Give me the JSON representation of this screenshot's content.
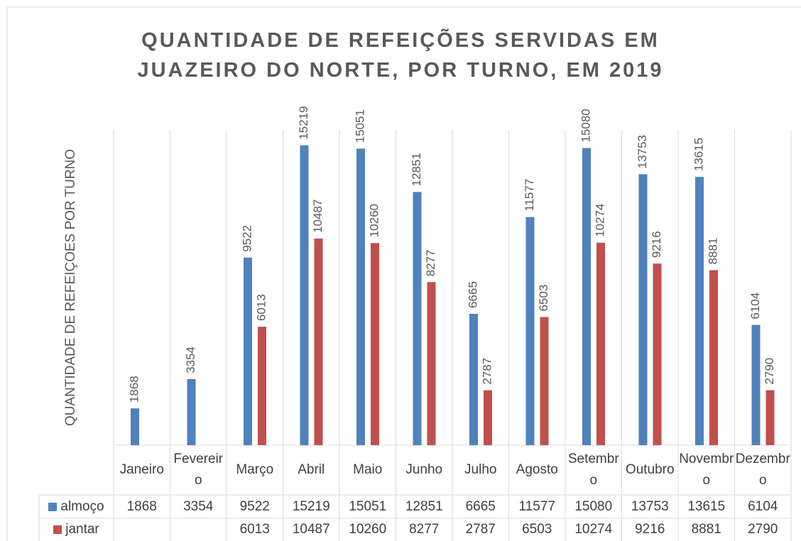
{
  "chart_data": {
    "type": "bar",
    "title": "QUANTIDADE DE REFEIÇÕES SERVIDAS EM JUAZEIRO DO NORTE, POR TURNO, EM 2019",
    "y_label": "QUANTIDADE DE REFEIÇOES POR TURNO",
    "categories": [
      "Janeiro",
      "Fevereiro",
      "Março",
      "Abril",
      "Maio",
      "Junho",
      "Julho",
      "Agosto",
      "Setembro",
      "Outubro",
      "Novembro",
      "Dezembro"
    ],
    "series": [
      {
        "name": "almoço",
        "color": "#4f81bd",
        "values": [
          1868,
          3354,
          9522,
          15219,
          15051,
          12851,
          6665,
          11577,
          15080,
          13753,
          13615,
          6104
        ]
      },
      {
        "name": "jantar",
        "color": "#c0504d",
        "values": [
          null,
          null,
          6013,
          10487,
          10260,
          8277,
          2787,
          6503,
          10274,
          9216,
          8881,
          2790
        ]
      }
    ],
    "ylim": [
      0,
      16000
    ]
  }
}
